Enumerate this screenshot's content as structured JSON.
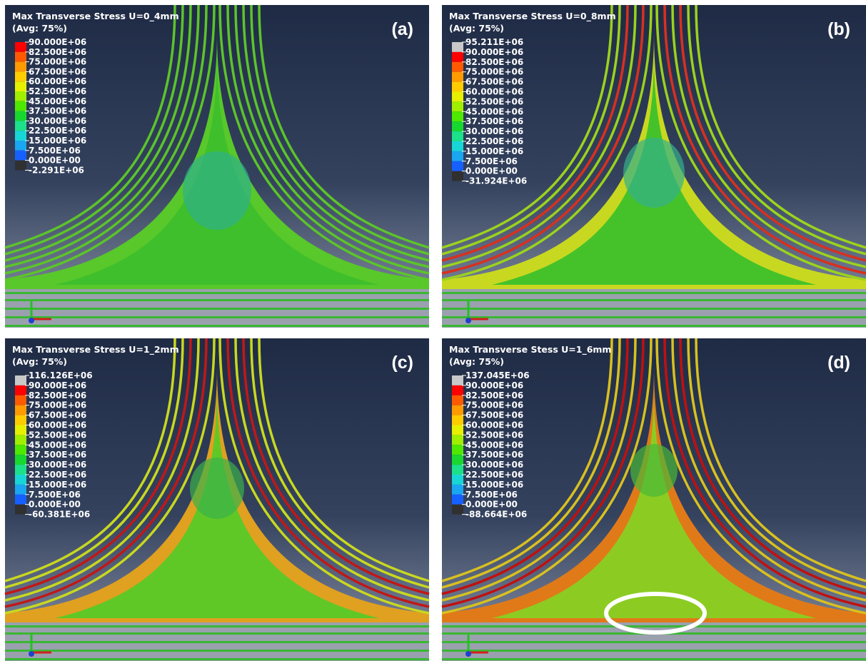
{
  "panels": [
    {
      "title": "Max Transverse Stress U=0_4mm",
      "avg": "(Avg: 75%)",
      "label": "(a)",
      "legend": [
        "90.000E+06",
        "82.500E+06",
        "75.000E+06",
        "67.500E+06",
        "60.000E+06",
        "52.500E+06",
        "45.000E+06",
        "37.500E+06",
        "30.000E+06",
        "22.500E+06",
        "15.000E+06",
        "7.500E+06",
        "0.000E+00",
        "-2.291E+06"
      ]
    },
    {
      "title": "Max Transverse Stress U=0_8mm",
      "avg": "(Avg: 75%)",
      "label": "(b)",
      "legend": [
        "95.211E+06",
        "90.000E+06",
        "82.500E+06",
        "75.000E+06",
        "67.500E+06",
        "60.000E+06",
        "52.500E+06",
        "45.000E+06",
        "37.500E+06",
        "30.000E+06",
        "22.500E+06",
        "15.000E+06",
        "7.500E+06",
        "0.000E+00",
        "-31.924E+06"
      ]
    },
    {
      "title": "Max Transverse Stress U=1_2mm",
      "avg": "(Avg: 75%)",
      "label": "(c)",
      "legend": [
        "116.126E+06",
        "90.000E+06",
        "82.500E+06",
        "75.000E+06",
        "67.500E+06",
        "60.000E+06",
        "52.500E+06",
        "45.000E+06",
        "37.500E+06",
        "30.000E+06",
        "22.500E+06",
        "15.000E+06",
        "7.500E+06",
        "0.000E+00",
        "-60.381E+06"
      ]
    },
    {
      "title": "Max Transverse Stess U=1_6mm",
      "avg": "(Avg: 75%)",
      "label": "(d)",
      "legend": [
        "137.045E+06",
        "90.000E+06",
        "82.500E+06",
        "75.000E+06",
        "67.500E+06",
        "60.000E+06",
        "52.500E+06",
        "45.000E+06",
        "37.500E+06",
        "30.000E+06",
        "22.500E+06",
        "15.000E+06",
        "7.500E+06",
        "0.000E+00",
        "-88.664E+06"
      ]
    }
  ]
}
